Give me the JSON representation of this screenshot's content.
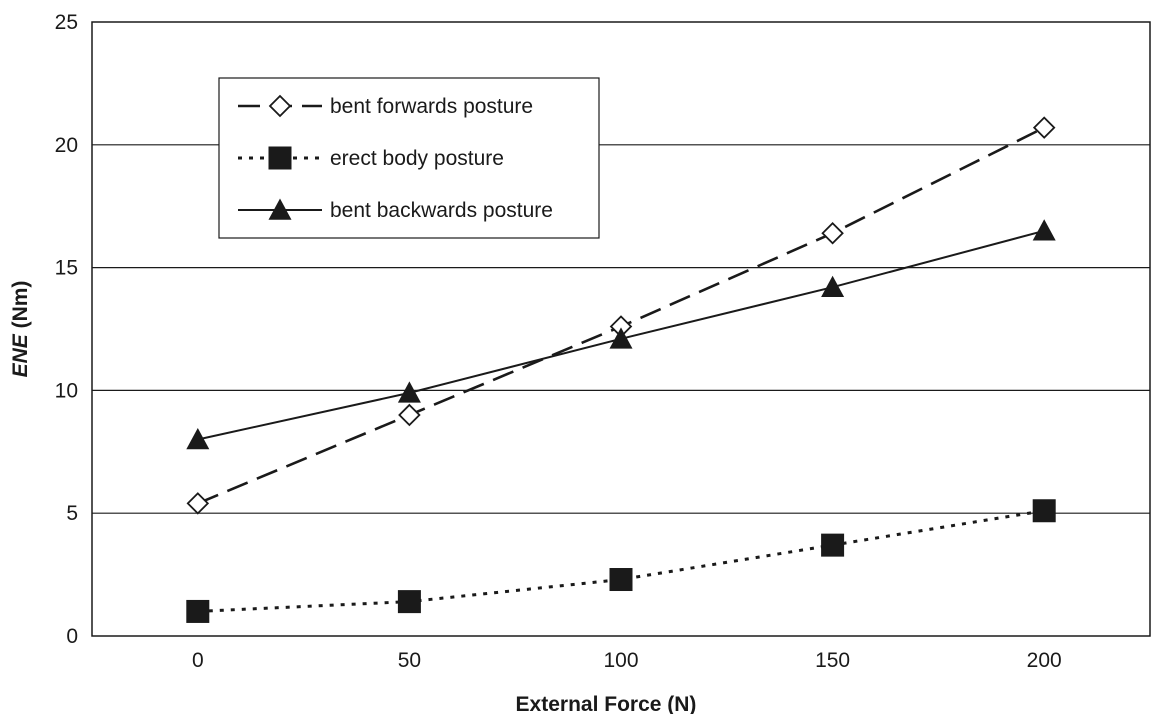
{
  "chart_data": {
    "type": "line",
    "title": "",
    "xlabel": "External Force (N)",
    "ylabel_italic": "ENE",
    "ylabel_rest": " (Nm)",
    "x": [
      0,
      50,
      100,
      150,
      200
    ],
    "x_ticks": [
      "0",
      "50",
      "100",
      "150",
      "200"
    ],
    "xlim": [
      -25,
      225
    ],
    "ylim": [
      0,
      25
    ],
    "y_ticks": [
      "0",
      "5",
      "10",
      "15",
      "20",
      "25"
    ],
    "grid": "horizontal",
    "legend_position": "top-left",
    "series": [
      {
        "name": "bent forwards posture",
        "values": [
          5.4,
          9.0,
          12.6,
          16.4,
          20.7
        ],
        "line": "long-dash",
        "marker": "open-diamond",
        "color": "#1a1a1a"
      },
      {
        "name": "erect body posture",
        "values": [
          1.0,
          1.4,
          2.3,
          3.7,
          5.1
        ],
        "line": "dotted",
        "marker": "filled-square",
        "color": "#1a1a1a"
      },
      {
        "name": "bent backwards posture",
        "values": [
          8.0,
          9.9,
          12.1,
          14.2,
          16.5
        ],
        "line": "solid",
        "marker": "filled-triangle",
        "color": "#1a1a1a"
      }
    ]
  }
}
